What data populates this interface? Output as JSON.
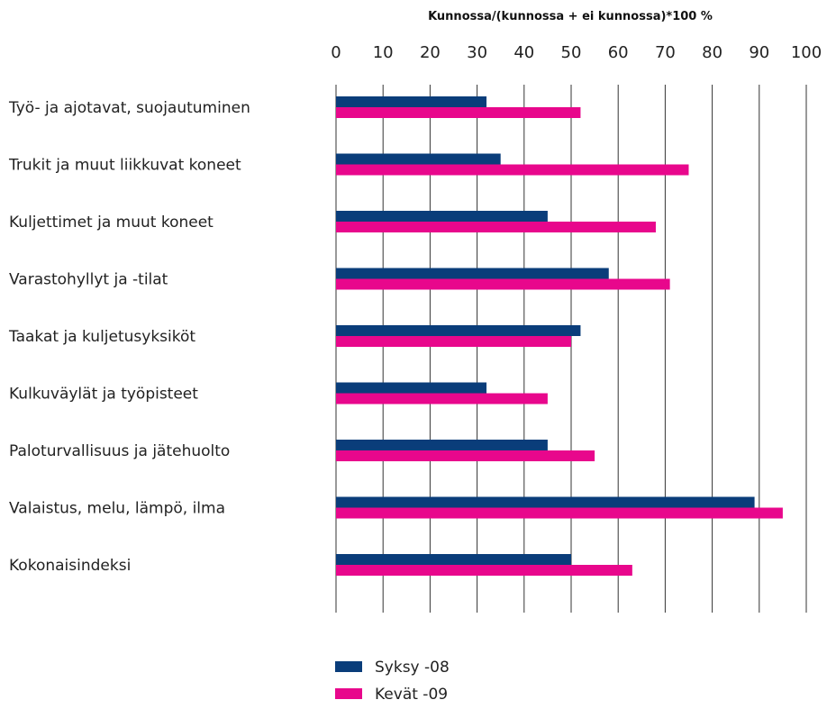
{
  "chart_data": {
    "type": "bar",
    "orientation": "horizontal",
    "title": "Kunnossa/(kunnossa + ei kunnossa)*100 %",
    "xlabel": "",
    "ylabel": "",
    "xlim": [
      0,
      100
    ],
    "x_ticks": [
      0,
      10,
      20,
      30,
      40,
      50,
      60,
      70,
      80,
      90,
      100
    ],
    "x_tick_labels": [
      "0",
      "10",
      "20",
      "30",
      "40",
      "50",
      "60",
      "70",
      "80",
      "90",
      "100"
    ],
    "grid": true,
    "legend_position": "bottom",
    "categories": [
      "Työ- ja ajotavat, suojautuminen",
      "Trukit ja muut liikkuvat koneet",
      "Kuljettimet ja muut koneet",
      "Varastohyllyt ja -tilat",
      "Taakat ja kuljetusyksiköt",
      "Kulkuväylät ja työpisteet",
      "Paloturvallisuus ja jätehuolto",
      "Valaistus, melu, lämpö, ilma",
      "Kokonaisindeksi"
    ],
    "series": [
      {
        "name": "Syksy -08",
        "color": "#0a3d7a",
        "values": [
          32,
          35,
          45,
          58,
          52,
          32,
          45,
          89,
          50
        ]
      },
      {
        "name": "Kevät -09",
        "color": "#e8078c",
        "values": [
          52,
          75,
          68,
          71,
          50,
          45,
          55,
          95,
          63
        ]
      }
    ]
  }
}
